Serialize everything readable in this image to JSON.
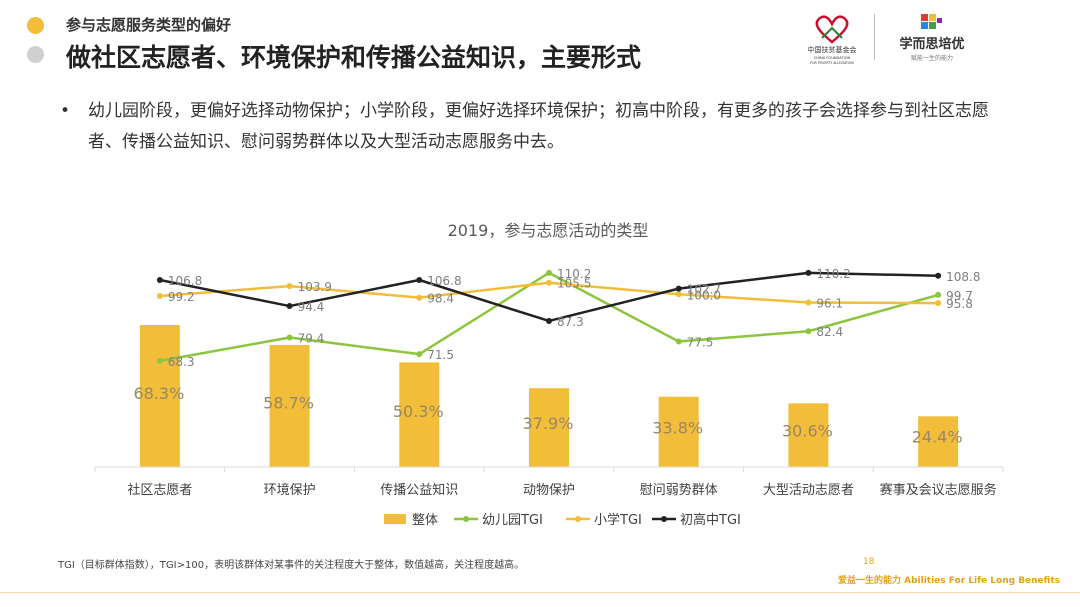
{
  "header": {
    "subtitle": "参与志愿服务类型的偏好",
    "title": "做社区志愿者、环境保护和传播公益知识，主要形式"
  },
  "logos": {
    "foundation_cn": "中国扶贫基金会",
    "foundation_en1": "CHINA FOUNDATION",
    "foundation_en2": "FOR POVERTY ALLEVIATION",
    "brand_cn": "学而思培优",
    "brand_tagline": "赋能一生的能力"
  },
  "bullet": {
    "marker": "•",
    "text": "幼儿园阶段，更偏好选择动物保护；小学阶段，更偏好选择环境保护；初高中阶段，有更多的孩子会选择参与到社区志愿者、传播公益知识、慰问弱势群体以及大型活动志愿服务中去。"
  },
  "chart_data": {
    "type": "bar",
    "title": "2019，参与志愿活动的类型",
    "categories": [
      "社区志愿者",
      "环境保护",
      "传播公益知识",
      "动物保护",
      "慰问弱势群体",
      "大型活动志愿者",
      "赛事及会议志愿服务"
    ],
    "bars": {
      "name": "整体",
      "values": [
        68.3,
        58.7,
        50.3,
        37.9,
        33.8,
        30.6,
        24.4
      ],
      "labels": [
        "68.3%",
        "58.7%",
        "50.3%",
        "37.9%",
        "33.8%",
        "30.6%",
        "24.4%"
      ],
      "color": "#F2BE3A"
    },
    "lines": [
      {
        "name": "幼儿园TGI",
        "values": [
          68.3,
          79.4,
          71.5,
          110.2,
          77.5,
          82.4,
          99.7
        ],
        "color": "#8CC63F"
      },
      {
        "name": "小学TGI",
        "values": [
          99.2,
          103.9,
          98.4,
          105.5,
          100.0,
          96.1,
          95.8
        ],
        "labels": [
          "99.2",
          "103.9",
          "98.4",
          "105.5",
          "100.0",
          "96.1",
          "95.8"
        ],
        "color": "#F2BE3A"
      },
      {
        "name": "初高中TGI",
        "values": [
          106.8,
          94.4,
          106.8,
          87.3,
          102.7,
          110.2,
          108.8
        ],
        "color": "#222222"
      }
    ],
    "legend_position": "bottom",
    "grid": false
  },
  "footer": {
    "note": "TGI（目标群体指数），TGI>100，表明该群体对某事件的关注程度大于整体，数值越高，关注程度越高。",
    "page": "18",
    "slogan": "爱益一生的能力  Abilities For Life Long Benefits"
  }
}
